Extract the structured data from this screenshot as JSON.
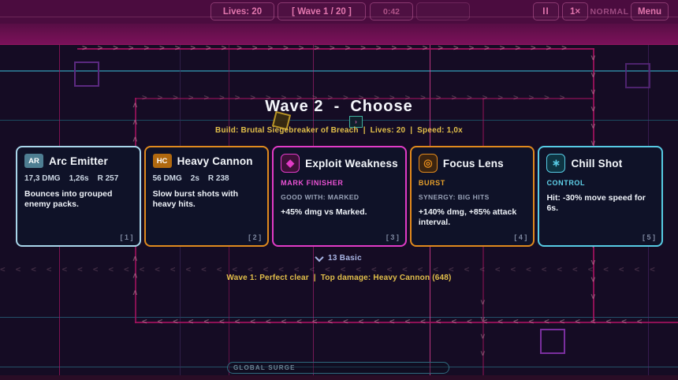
{
  "topbar": {
    "lives": "Lives: 20",
    "wave": "[ Wave 1 / 20 ]",
    "timer": "0:42",
    "pause_label": "II",
    "speed_label": "1×",
    "difficulty_label": "NORMAL",
    "menu_label": "Menu"
  },
  "choose": {
    "title": "Wave 2  -  Choose",
    "build_line": "Build: Brutal Siegebreaker of Breach  |  Lives: 20  |  Speed: 1,0x",
    "cards": [
      {
        "badge": "AR",
        "badge_bg": "#4e7e92",
        "accent": "#a9d6ea",
        "title": "Arc Emitter",
        "stats": [
          "17,3 DMG",
          "1,26s",
          "R 257"
        ],
        "tag": null,
        "tag_color": null,
        "synergy": null,
        "desc": "Bounces into grouped enemy packs.",
        "hotkey": "[ 1 ]",
        "icon": null,
        "glyph": null,
        "icon_bg": null
      },
      {
        "badge": "HC",
        "badge_bg": "#b1690f",
        "accent": "#e08a1e",
        "title": "Heavy Cannon",
        "stats": [
          "56 DMG",
          "2s",
          "R 238"
        ],
        "tag": null,
        "tag_color": null,
        "synergy": null,
        "desc": "Slow burst shots with heavy hits.",
        "hotkey": "[ 2 ]",
        "icon": null,
        "glyph": null,
        "icon_bg": null
      },
      {
        "badge": null,
        "badge_bg": null,
        "accent": "#e13bc6",
        "title": "Exploit Weakness",
        "stats": null,
        "tag": "MARK FINISHER",
        "tag_color": "#ea52d4",
        "synergy": "GOOD WITH: MARKED",
        "desc": "+45% dmg vs Marked.",
        "hotkey": "[ 3 ]",
        "icon": "gem-icon",
        "glyph": "◆",
        "icon_bg": "#3d1038"
      },
      {
        "badge": null,
        "badge_bg": null,
        "accent": "#e0891d",
        "title": "Focus Lens",
        "stats": null,
        "tag": "BURST",
        "tag_color": "#e8a02a",
        "synergy": "SYNERGY: BIG HITS",
        "desc": "+140% dmg, +85% attack interval.",
        "hotkey": "[ 4 ]",
        "icon": "target-icon",
        "glyph": "◎",
        "icon_bg": "#3b2410"
      },
      {
        "badge": null,
        "badge_bg": null,
        "accent": "#57cbe4",
        "title": "Chill Shot",
        "stats": null,
        "tag": "CONTROL",
        "tag_color": "#5fd2ea",
        "synergy": null,
        "desc": "Hit: -30% move speed for 6s.",
        "hotkey": "[ 5 ]",
        "icon": "snowflake-icon",
        "glyph": "∗",
        "icon_bg": "#0e3442"
      }
    ],
    "expander_label": "13 Basic",
    "status_line": "Wave 1: Perfect clear  |  Top damage: Heavy Cannon (648)"
  },
  "bottom": {
    "global_surge_label": "GLOBAL SURGE"
  },
  "colors": {
    "accent_gold": "#e2bf4a",
    "topbar_pink": "#e276ad",
    "path_magenta": "#a3135f",
    "grid_cyan": "#2d7e98",
    "expander_blue": "#a9b6e6",
    "card_bg": "#0f1228"
  }
}
